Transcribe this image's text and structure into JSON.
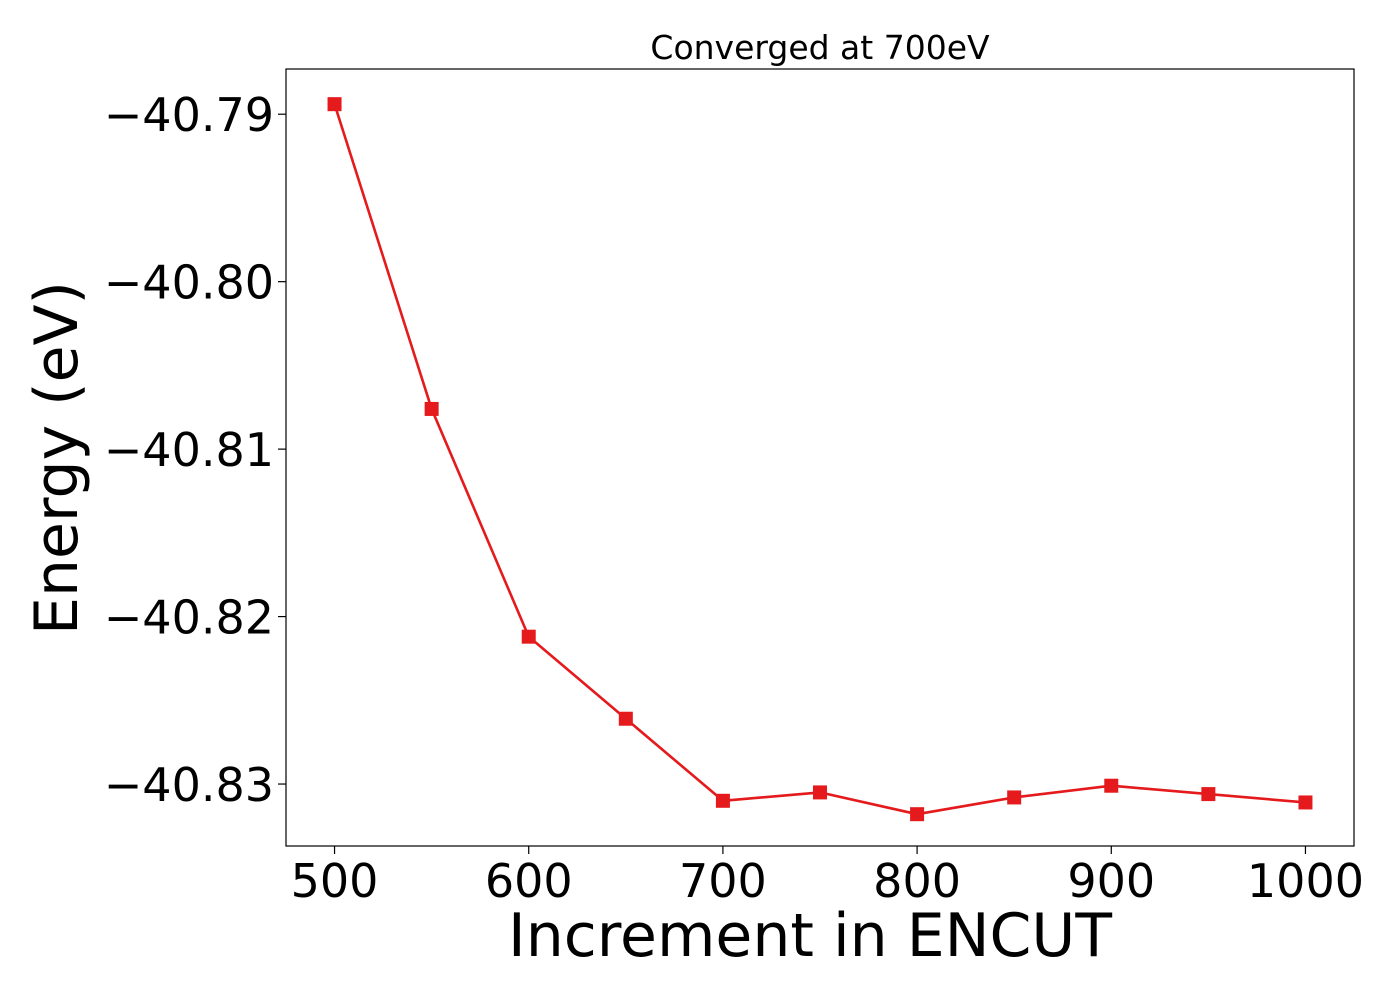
{
  "chart_data": {
    "type": "line",
    "title": "Converged at 700eV",
    "xlabel": "Increment in ENCUT",
    "ylabel": "Energy (eV)",
    "xlim": [
      475,
      1025
    ],
    "ylim": [
      -40.8337,
      -40.7873
    ],
    "x_ticks": [
      500,
      600,
      700,
      800,
      900,
      1000
    ],
    "y_ticks": [
      -40.79,
      -40.8,
      -40.81,
      -40.82,
      -40.83
    ],
    "y_tick_labels": [
      "−40.79",
      "−40.80",
      "−40.81",
      "−40.82",
      "−40.83"
    ],
    "grid": false,
    "legend": "none",
    "series": [
      {
        "color": "#e41a1c",
        "marker": "square",
        "x": [
          500,
          550,
          600,
          650,
          700,
          750,
          800,
          850,
          900,
          950,
          1000
        ],
        "y": [
          -40.7894,
          -40.8076,
          -40.8212,
          -40.8261,
          -40.831,
          -40.8305,
          -40.8318,
          -40.8308,
          -40.8301,
          -40.8306,
          -40.8311
        ]
      }
    ]
  }
}
